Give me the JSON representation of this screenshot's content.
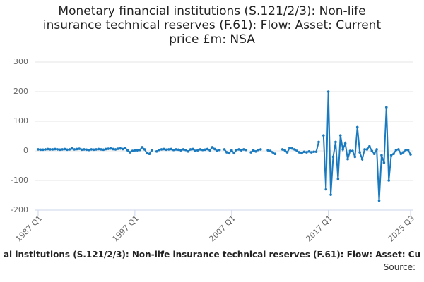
{
  "chart_data": {
    "type": "line",
    "title": "Monetary financial institutions (S.121/2/3): Non-life insurance technical reserves (F.61): Flow: Asset: Current price £m: NSA",
    "caption": "al institutions (S.121/2/3): Non-life insurance technical reserves (F.61): Flow: Asset: Cu",
    "source": "Source:",
    "color": "#1a7abf",
    "grid": true,
    "ylim": [
      -200,
      300
    ],
    "yticks": [
      -200,
      -100,
      0,
      100,
      200,
      300
    ],
    "categories": [
      "1987 Q1",
      null,
      null,
      null,
      null,
      null,
      null,
      null,
      null,
      null,
      null,
      null,
      null,
      null,
      null,
      null,
      null,
      null,
      null,
      null,
      null,
      null,
      null,
      null,
      null,
      null,
      null,
      null,
      null,
      null,
      null,
      null,
      null,
      null,
      null,
      null,
      null,
      null,
      null,
      null,
      "1997 Q1",
      null,
      null,
      null,
      null,
      null,
      null,
      null,
      null,
      null,
      null,
      null,
      null,
      null,
      null,
      null,
      null,
      null,
      null,
      null,
      null,
      null,
      null,
      null,
      null,
      null,
      null,
      null,
      null,
      null,
      null,
      null,
      null,
      null,
      null,
      null,
      null,
      null,
      null,
      null,
      "2007 Q1",
      null,
      null,
      null,
      null,
      null,
      null,
      null,
      null,
      null,
      null,
      null,
      null,
      null,
      null,
      null,
      null,
      null,
      null,
      null,
      null,
      null,
      null,
      null,
      null,
      null,
      null,
      null,
      null,
      null,
      null,
      null,
      null,
      null,
      null,
      null,
      null,
      null,
      null,
      null,
      "2017 Q1",
      null,
      null,
      null,
      null,
      null,
      null,
      null,
      null,
      null,
      null,
      null,
      null,
      null,
      null,
      null,
      null,
      null,
      null,
      null,
      null,
      null,
      null,
      null,
      null,
      null,
      null,
      null,
      null,
      null,
      null,
      null,
      null,
      null,
      "2025 Q3"
    ],
    "values": [
      5,
      4,
      4,
      5,
      6,
      5,
      5,
      6,
      5,
      4,
      5,
      6,
      4,
      5,
      8,
      5,
      6,
      7,
      4,
      5,
      4,
      3,
      5,
      4,
      5,
      6,
      5,
      4,
      6,
      7,
      8,
      6,
      5,
      7,
      8,
      6,
      10,
      2,
      -5,
      0,
      2,
      2,
      3,
      12,
      5,
      -8,
      -10,
      2,
      null,
      -2,
      3,
      5,
      6,
      4,
      5,
      6,
      3,
      5,
      4,
      2,
      5,
      3,
      -2,
      5,
      6,
      0,
      2,
      5,
      3,
      4,
      6,
      2,
      12,
      6,
      0,
      3,
      null,
      5,
      -5,
      -8,
      2,
      -8,
      3,
      5,
      2,
      5,
      3,
      null,
      -5,
      2,
      -2,
      3,
      5,
      null,
      null,
      2,
      0,
      -5,
      -10,
      null,
      null,
      5,
      2,
      -5,
      10,
      8,
      5,
      0,
      -5,
      -8,
      -3,
      -5,
      -2,
      -5,
      -3,
      -3,
      30,
      null,
      52,
      -130,
      200,
      -148,
      -20,
      30,
      -95,
      52,
      5,
      25,
      -28,
      0,
      0,
      -20,
      80,
      -5,
      -28,
      5,
      5,
      15,
      0,
      -10,
      5,
      -168,
      -15,
      -40,
      147,
      -100,
      -15,
      -10,
      3,
      5,
      -10,
      -5,
      3,
      3,
      -12
    ]
  }
}
